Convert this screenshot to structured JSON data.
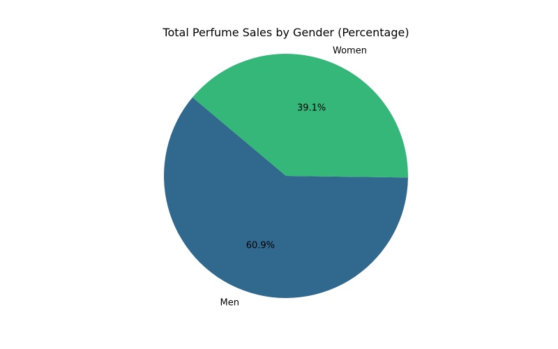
{
  "chart_data": {
    "type": "pie",
    "title": "Total Perfume Sales by Gender (Percentage)",
    "slices": [
      {
        "label": "Men",
        "value": 60.9,
        "pct_text": "60.9%",
        "color": "#31688e"
      },
      {
        "label": "Women",
        "value": 39.1,
        "pct_text": "39.1%",
        "color": "#35b779"
      }
    ],
    "legend": "none"
  }
}
